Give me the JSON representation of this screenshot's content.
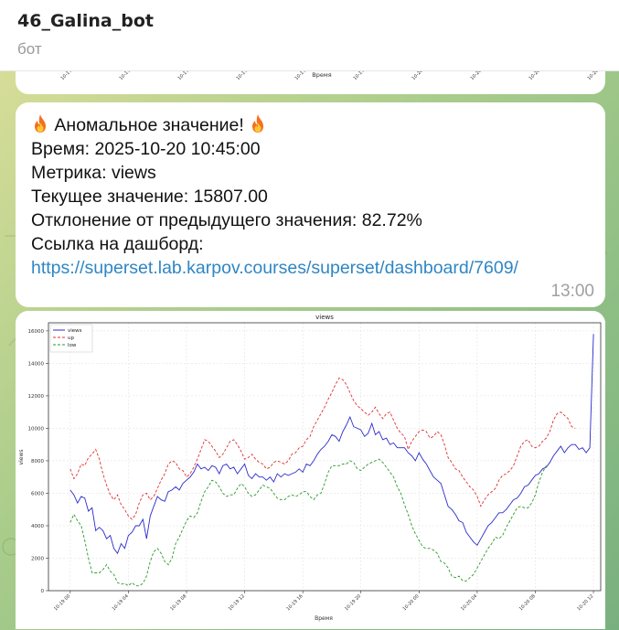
{
  "header": {
    "title": "46_Galina_bot",
    "subtitle": "бот"
  },
  "prev_chart": {
    "xlabel": "Время",
    "ticks": [
      "10-19 0",
      "10-19 0",
      "10-19 0",
      "10-19 1",
      "10-19 1",
      "10-19 2",
      "10-20 0",
      "10-20 0",
      "10-20 0",
      "10-20 1"
    ]
  },
  "message": {
    "fire_icon": "fire-emoji",
    "title": "Аномальное значение!",
    "time_line": "Время: 2025-10-20 10:45:00",
    "metric_line": "Метрика: views",
    "current_line": "Текущее значение: 15807.00",
    "deviation_line": "Отклонение от предыдущего значения: 82.72%",
    "dashboard_label": "Ссылка на дашборд:",
    "dashboard_url": "https://superset.lab.karpov.courses/superset/dashboard/7609/",
    "timestamp": "13:00"
  },
  "chart_data": {
    "type": "line",
    "title": "views",
    "xlabel": "Время",
    "ylabel": "views",
    "ylim": [
      0,
      16500
    ],
    "yticks": [
      0,
      2000,
      4000,
      6000,
      8000,
      10000,
      12000,
      14000,
      16000
    ],
    "xticks": [
      "10-19 00",
      "10-19 04",
      "10-19 08",
      "10-19 12",
      "10-19 16",
      "10-19 20",
      "10-20 00",
      "10-20 04",
      "10-20 08",
      "10-20 12"
    ],
    "x_range_hours": [
      -1.5,
      36.5
    ],
    "legend_position": "top-left",
    "grid": true,
    "colors": {
      "views": "#2b2bcc",
      "up": "#e03030",
      "low": "#2a9a2a"
    },
    "series": [
      {
        "name": "views",
        "style": "solid",
        "x_start_hours": 0,
        "step_hours": 0.25,
        "values": [
          6200,
          5900,
          5400,
          5800,
          5700,
          4900,
          5100,
          3700,
          3900,
          3700,
          3200,
          3400,
          2600,
          2300,
          2900,
          2600,
          3400,
          3600,
          4000,
          4000,
          4400,
          3200,
          4600,
          5200,
          5800,
          5600,
          5500,
          6100,
          6200,
          6400,
          6200,
          6600,
          6800,
          7000,
          7300,
          7800,
          7500,
          7600,
          7400,
          7700,
          7600,
          7200,
          7700,
          7800,
          7500,
          7600,
          7200,
          7500,
          7800,
          7100,
          6900,
          7200,
          7000,
          7000,
          6800,
          7000,
          6700,
          7200,
          7000,
          7200,
          7100,
          7200,
          7300,
          7500,
          7300,
          7800,
          7700,
          8000,
          8400,
          8700,
          8900,
          9200,
          9600,
          9500,
          9200,
          9800,
          10200,
          10700,
          10100,
          10000,
          9900,
          9500,
          9700,
          10300,
          9600,
          9800,
          9300,
          9400,
          9000,
          9100,
          8800,
          8800,
          8800,
          8500,
          8300,
          8000,
          8500,
          8100,
          7800,
          7400,
          7000,
          6800,
          6600,
          5900,
          5200,
          5000,
          4700,
          4300,
          4200,
          3600,
          3300,
          3000,
          2800,
          3200,
          3600,
          4000,
          4200,
          4500,
          4800,
          4800,
          5000,
          5300,
          5600,
          5700,
          6000,
          6400,
          6500,
          6800,
          7100,
          7200,
          7500,
          7600,
          7900,
          8300,
          8600,
          8900,
          8500,
          8800,
          9000,
          9000,
          8700,
          8800,
          8500,
          8800,
          15807
        ]
      },
      {
        "name": "up",
        "style": "dashed",
        "x_start_hours": 0,
        "step_hours": 0.25,
        "values": [
          7500,
          6900,
          7200,
          7800,
          7700,
          8200,
          8400,
          8700,
          8100,
          7200,
          6500,
          5900,
          5600,
          5900,
          5300,
          5000,
          4600,
          4400,
          4700,
          5400,
          5900,
          6000,
          5600,
          5800,
          6300,
          6800,
          7200,
          7800,
          8000,
          7900,
          7500,
          7400,
          7000,
          7200,
          7600,
          8100,
          8700,
          9300,
          9200,
          8900,
          8600,
          8200,
          8400,
          8800,
          9200,
          9300,
          9000,
          8600,
          8100,
          8200,
          8400,
          8100,
          7900,
          7800,
          7500,
          7600,
          7900,
          8000,
          7900,
          7800,
          8000,
          8400,
          8500,
          8800,
          8900,
          9300,
          9500,
          10100,
          10500,
          10900,
          11300,
          11800,
          12200,
          12700,
          13100,
          13000,
          12700,
          12200,
          11700,
          11400,
          11200,
          11000,
          10800,
          11000,
          11300,
          10900,
          10600,
          10900,
          11000,
          10500,
          10000,
          9700,
          9500,
          8700,
          9200,
          9500,
          9800,
          9900,
          9800,
          9400,
          9500,
          9800,
          9600,
          9000,
          8200,
          7900,
          7500,
          7400,
          7000,
          6700,
          6400,
          6200,
          5800,
          5200,
          5600,
          5900,
          6100,
          6300,
          6800,
          7100,
          7200,
          7400,
          7700,
          8300,
          8900,
          9200,
          9300,
          8900,
          8800,
          8900,
          9200,
          9400,
          9800,
          10500,
          10900,
          11000,
          10800,
          10600,
          10100,
          10000
        ]
      },
      {
        "name": "low",
        "style": "dashed",
        "x_start_hours": 0,
        "step_hours": 0.25,
        "values": [
          4200,
          4700,
          4300,
          4000,
          3100,
          2000,
          1100,
          1100,
          1100,
          1300,
          1600,
          1200,
          1000,
          500,
          400,
          450,
          300,
          500,
          300,
          300,
          450,
          900,
          1800,
          2400,
          2600,
          2300,
          1800,
          1600,
          2000,
          2900,
          3300,
          3800,
          4300,
          4600,
          4500,
          4800,
          5500,
          6100,
          6400,
          6800,
          6700,
          6400,
          6000,
          5800,
          5900,
          5900,
          6300,
          6600,
          6400,
          6000,
          5800,
          5900,
          6200,
          6500,
          6400,
          6300,
          6000,
          5700,
          5600,
          5600,
          5800,
          5900,
          5800,
          5900,
          6100,
          6100,
          5800,
          5600,
          5900,
          6000,
          6600,
          7300,
          7700,
          7700,
          7700,
          7800,
          7800,
          8000,
          7900,
          7500,
          7400,
          7600,
          7800,
          7900,
          8000,
          8100,
          7900,
          7600,
          7300,
          7000,
          6400,
          6000,
          5300,
          4700,
          4000,
          3500,
          3100,
          2700,
          2600,
          2600,
          2500,
          2300,
          1800,
          1700,
          1400,
          900,
          800,
          900,
          600,
          600,
          800,
          1000,
          1400,
          1800,
          2200,
          2600,
          2900,
          3300,
          3200,
          3400,
          3900,
          4300,
          4700,
          5100,
          5200,
          5100,
          5100,
          5400,
          5900,
          6700,
          7300,
          7700
        ]
      }
    ]
  }
}
